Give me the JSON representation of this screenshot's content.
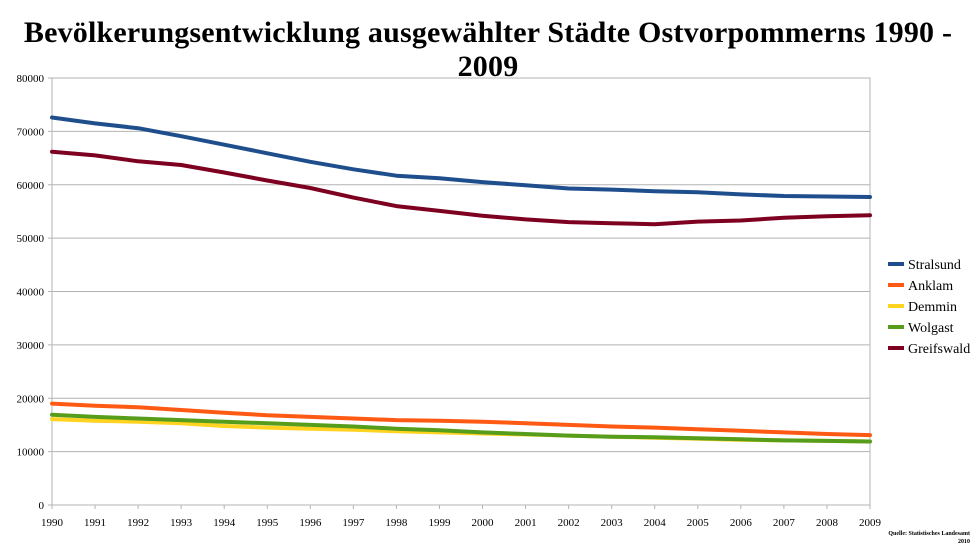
{
  "chart_data": {
    "type": "line",
    "title": "Bevölkerungsentwicklung ausgewählter Städte Ostvorpommerns 1990 - 2009",
    "xlabel": "",
    "ylabel": "",
    "x": [
      1990,
      1991,
      1992,
      1993,
      1994,
      1995,
      1996,
      1997,
      1998,
      1999,
      2000,
      2001,
      2002,
      2003,
      2004,
      2005,
      2006,
      2007,
      2008,
      2009
    ],
    "ylim": [
      0,
      80000
    ],
    "yticks": [
      0,
      10000,
      20000,
      30000,
      40000,
      50000,
      60000,
      70000,
      80000
    ],
    "grid": true,
    "legend_position": "right",
    "series": [
      {
        "name": "Stralsund",
        "color": "#1f4e8c",
        "values": [
          72600,
          71500,
          70600,
          69100,
          67500,
          65900,
          64300,
          62900,
          61700,
          61200,
          60500,
          59900,
          59300,
          59100,
          58800,
          58600,
          58200,
          57900,
          57800,
          57700
        ]
      },
      {
        "name": "Anklam",
        "color": "#ff5a14",
        "values": [
          19000,
          18600,
          18300,
          17800,
          17300,
          16800,
          16500,
          16200,
          15900,
          15800,
          15600,
          15300,
          15000,
          14700,
          14500,
          14200,
          13900,
          13600,
          13300,
          13100
        ]
      },
      {
        "name": "Demmin",
        "color": "#ffd320",
        "values": [
          16100,
          15800,
          15600,
          15300,
          14800,
          14500,
          14300,
          14100,
          13800,
          13600,
          13400,
          13200,
          13000,
          12800,
          12600,
          12400,
          12200,
          12100,
          12000,
          11900
        ]
      },
      {
        "name": "Wolgast",
        "color": "#579d1c",
        "values": [
          16900,
          16500,
          16200,
          15900,
          15600,
          15300,
          15000,
          14700,
          14300,
          14000,
          13600,
          13300,
          13000,
          12800,
          12700,
          12500,
          12300,
          12100,
          12000,
          11900
        ]
      },
      {
        "name": "Greifswald",
        "color": "#7e0021",
        "values": [
          66200,
          65500,
          64400,
          63700,
          62300,
          60800,
          59400,
          57600,
          56000,
          55100,
          54200,
          53500,
          53000,
          52800,
          52600,
          53100,
          53300,
          53800,
          54100,
          54300
        ]
      }
    ]
  },
  "source": {
    "line1": "Quelle: Statistisches Landesamt",
    "line2": "2010"
  }
}
